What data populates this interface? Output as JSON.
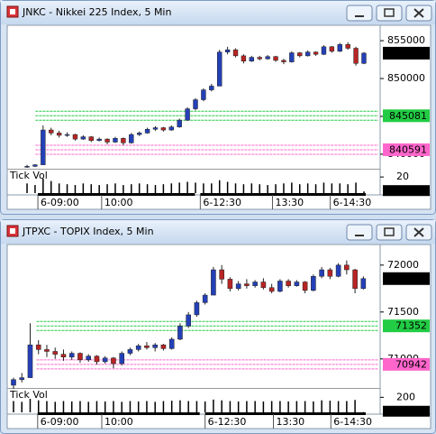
{
  "chart_data": [
    {
      "type": "candlestick",
      "title": "JNKC - Nikkei 225 Index, 5 Min",
      "up_color": "#2440b8",
      "down_color": "#b82424",
      "ylim": [
        838200,
        856800
      ],
      "yticks": [
        840000,
        845000,
        850000,
        855000
      ],
      "xlim": [
        -2.25,
        43.8
      ],
      "xticks": [
        {
          "value": 1.35,
          "label": "6-09:00"
        },
        {
          "value": 9.3,
          "label": "10:00"
        },
        {
          "value": 21.6,
          "label": "6-12:30"
        },
        {
          "value": 30.6,
          "label": "13:30"
        },
        {
          "value": 37.8,
          "label": "6-14:30"
        }
      ],
      "last_price": 853353,
      "levels": [
        {
          "value": 845081,
          "color": "#22cc44"
        },
        {
          "value": 840591,
          "color": "#ff66cc"
        }
      ],
      "ohlc": [
        [
          838300,
          838600,
          838200,
          838400
        ],
        [
          838400,
          838700,
          838300,
          838600
        ],
        [
          838600,
          843800,
          838600,
          843200
        ],
        [
          843200,
          843500,
          842500,
          842800
        ],
        [
          842800,
          843100,
          842200,
          842500
        ],
        [
          842500,
          842900,
          842300,
          842600
        ],
        [
          842600,
          842700,
          841800,
          842000
        ],
        [
          842000,
          842500,
          841900,
          842300
        ],
        [
          842300,
          842400,
          841600,
          841800
        ],
        [
          841800,
          842200,
          841700,
          842000
        ],
        [
          842000,
          842100,
          841300,
          841600
        ],
        [
          841600,
          842300,
          841500,
          842100
        ],
        [
          842100,
          842200,
          841200,
          841500
        ],
        [
          841500,
          842800,
          841400,
          842600
        ],
        [
          842600,
          843000,
          842400,
          842800
        ],
        [
          842800,
          843500,
          842700,
          843300
        ],
        [
          843300,
          843700,
          843100,
          843500
        ],
        [
          843500,
          843600,
          843000,
          843200
        ],
        [
          843200,
          843800,
          843100,
          843600
        ],
        [
          843600,
          844700,
          843500,
          844500
        ],
        [
          844500,
          846200,
          844400,
          846000
        ],
        [
          846000,
          847400,
          845800,
          847200
        ],
        [
          847200,
          848700,
          847000,
          848500
        ],
        [
          848500,
          849300,
          848300,
          849000
        ],
        [
          849000,
          853800,
          849000,
          853500
        ],
        [
          853500,
          854200,
          853200,
          853800
        ],
        [
          853800,
          854000,
          852800,
          853000
        ],
        [
          853000,
          853200,
          852000,
          852300
        ],
        [
          852300,
          853000,
          852200,
          852800
        ],
        [
          852800,
          853000,
          852400,
          852600
        ],
        [
          852600,
          853100,
          852500,
          852900
        ],
        [
          852900,
          853000,
          852200,
          852400
        ],
        [
          852400,
          852600,
          851900,
          852200
        ],
        [
          852200,
          853600,
          852100,
          853400
        ],
        [
          853400,
          853500,
          852800,
          853000
        ],
        [
          853000,
          853700,
          852900,
          853500
        ],
        [
          853500,
          853600,
          853000,
          853200
        ],
        [
          853200,
          854400,
          853100,
          854200
        ],
        [
          854200,
          854300,
          853400,
          853600
        ],
        [
          853600,
          854700,
          853500,
          854500
        ],
        [
          854500,
          854800,
          853800,
          854000
        ],
        [
          854000,
          854200,
          851700,
          852000
        ],
        [
          852000,
          853500,
          851900,
          853353
        ]
      ],
      "volume": {
        "label": "Tick Vol",
        "ylim": [
          0,
          28
        ],
        "yticks": [
          20
        ],
        "last": 2,
        "values": [
          12,
          10,
          18,
          15,
          12,
          11,
          10,
          12,
          11,
          10,
          11,
          12,
          10,
          11,
          12,
          11,
          10,
          11,
          12,
          13,
          14,
          13,
          12,
          12,
          16,
          14,
          12,
          11,
          12,
          11,
          10,
          11,
          12,
          13,
          11,
          12,
          11,
          13,
          12,
          12,
          11,
          13,
          2
        ]
      }
    },
    {
      "type": "candlestick",
      "title": "JTPXC - TOPIX Index, 5 Min",
      "up_color": "#2440b8",
      "down_color": "#b82424",
      "ylim": [
        70700,
        72200
      ],
      "yticks": [
        71000,
        71500,
        72000
      ],
      "xlim": [
        -0.54,
        43.8
      ],
      "xticks": [
        {
          "value": 2.9,
          "label": "6-09:00"
        },
        {
          "value": 10.6,
          "label": "10:00"
        },
        {
          "value": 23,
          "label": "6-12:30"
        },
        {
          "value": 31.2,
          "label": "13:30"
        },
        {
          "value": 38.1,
          "label": "6-14:30"
        }
      ],
      "last_price": 71856,
      "levels": [
        {
          "value": 71352,
          "color": "#22cc44"
        },
        {
          "value": 70942,
          "color": "#ff66cc"
        }
      ],
      "ohlc": [
        [
          70720,
          70800,
          70680,
          70780
        ],
        [
          70780,
          70850,
          70750,
          70800
        ],
        [
          70800,
          71380,
          70800,
          71150
        ],
        [
          71150,
          71200,
          71050,
          71100
        ],
        [
          71100,
          71150,
          71020,
          71080
        ],
        [
          71080,
          71120,
          71000,
          71050
        ],
        [
          71050,
          71100,
          70980,
          71020
        ],
        [
          71020,
          71080,
          70990,
          71060
        ],
        [
          71060,
          71070,
          70960,
          70990
        ],
        [
          70990,
          71050,
          70970,
          71030
        ],
        [
          71030,
          71040,
          70940,
          70970
        ],
        [
          70970,
          71030,
          70950,
          71010
        ],
        [
          71010,
          71020,
          70900,
          70950
        ],
        [
          70950,
          71080,
          70930,
          71060
        ],
        [
          71060,
          71120,
          71040,
          71100
        ],
        [
          71100,
          71160,
          71080,
          71140
        ],
        [
          71140,
          71180,
          71100,
          71120
        ],
        [
          71120,
          71170,
          71080,
          71150
        ],
        [
          71150,
          71160,
          71090,
          71110
        ],
        [
          71110,
          71230,
          71100,
          71210
        ],
        [
          71210,
          71380,
          71200,
          71350
        ],
        [
          71350,
          71500,
          71330,
          71470
        ],
        [
          71470,
          71620,
          71450,
          71600
        ],
        [
          71600,
          71700,
          71580,
          71680
        ],
        [
          71680,
          71980,
          71680,
          71950
        ],
        [
          71950,
          72000,
          71800,
          71850
        ],
        [
          71850,
          71870,
          71720,
          71750
        ],
        [
          71750,
          71830,
          71730,
          71800
        ],
        [
          71800,
          71850,
          71750,
          71780
        ],
        [
          71780,
          71840,
          71760,
          71820
        ],
        [
          71820,
          71860,
          71740,
          71760
        ],
        [
          71760,
          71800,
          71700,
          71720
        ],
        [
          71720,
          71850,
          71710,
          71830
        ],
        [
          71830,
          71850,
          71760,
          71780
        ],
        [
          71780,
          71840,
          71770,
          71820
        ],
        [
          71820,
          71830,
          71700,
          71730
        ],
        [
          71730,
          71900,
          71720,
          71880
        ],
        [
          71880,
          71980,
          71860,
          71950
        ],
        [
          71950,
          71970,
          71850,
          71880
        ],
        [
          71880,
          72020,
          71870,
          72000
        ],
        [
          72000,
          72050,
          71900,
          71950
        ],
        [
          71950,
          71960,
          71700,
          71750
        ],
        [
          71750,
          71880,
          71740,
          71856
        ]
      ],
      "volume": {
        "label": "Tick Vol",
        "ylim": [
          0,
          300
        ],
        "yticks": [
          200
        ],
        "last": 3,
        "values": [
          150,
          140,
          180,
          160,
          150,
          140,
          150,
          145,
          150,
          140,
          150,
          145,
          150,
          140,
          150,
          145,
          150,
          140,
          150,
          155,
          160,
          150,
          150,
          145,
          170,
          160,
          150,
          145,
          150,
          150,
          145,
          150,
          150,
          145,
          150,
          150,
          145,
          160,
          155,
          150,
          150,
          165,
          3
        ]
      }
    }
  ]
}
